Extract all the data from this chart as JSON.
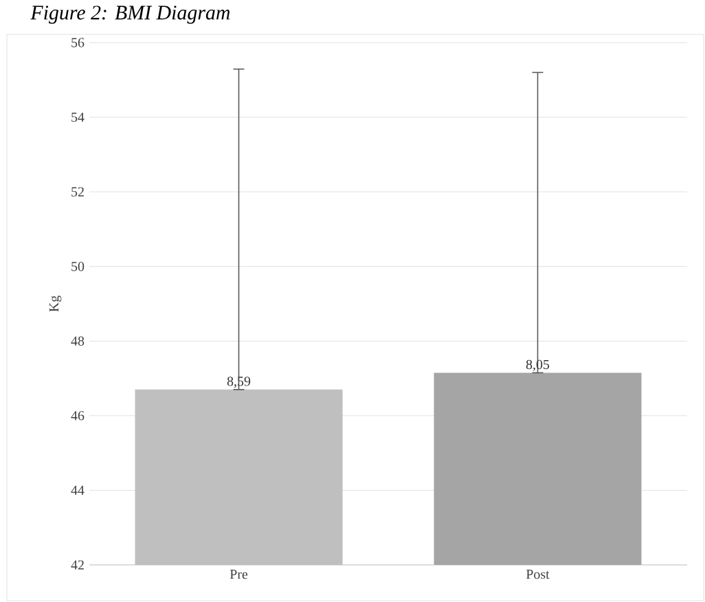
{
  "chart_data": {
    "type": "bar",
    "title": "Figure 2: BMI Diagram",
    "ylabel": "Kg",
    "categories": [
      "Pre",
      "Post"
    ],
    "values": [
      46.7,
      47.15
    ],
    "colors": [
      "#bfbfbf",
      "#a5a5a5"
    ],
    "errors": [
      [
        46.7,
        55.29
      ],
      [
        47.15,
        55.2
      ]
    ],
    "annotations": [
      {
        "text": "8,59",
        "x": "Pre",
        "y": 46.7
      },
      {
        "text": "8,05",
        "x": "Post",
        "y": 47.15
      }
    ],
    "ylim": [
      42,
      56
    ],
    "yticks": [
      42,
      44,
      46,
      48,
      50,
      52,
      54,
      56
    ],
    "grid": "y"
  }
}
